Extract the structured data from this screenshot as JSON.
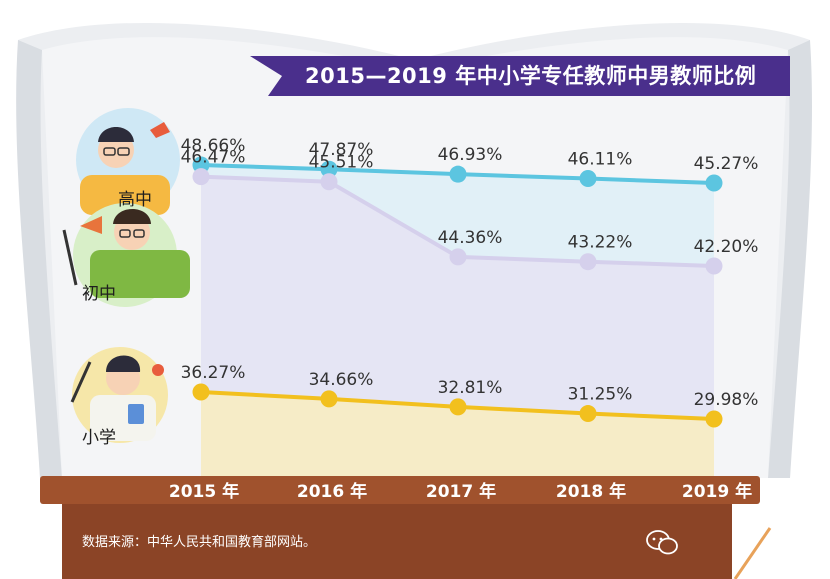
{
  "chart_data": {
    "type": "line",
    "title": "2015—2019 年中小学专任教师中男教师比例",
    "categories": [
      "2015 年",
      "2016 年",
      "2017 年",
      "2018 年",
      "2019 年"
    ],
    "series": [
      {
        "name": "高中",
        "values": [
          48.66,
          47.87,
          46.93,
          46.11,
          45.27
        ],
        "labels": [
          "48.66%",
          "47.87%",
          "46.93%",
          "46.11%",
          "45.27%"
        ],
        "color": "#5cc5e0"
      },
      {
        "name": "初中",
        "values": [
          46.47,
          45.51,
          44.36,
          43.22,
          42.2
        ],
        "labels": [
          "46.47%",
          "45.51%",
          "44.36%",
          "43.22%",
          "42.20%"
        ],
        "color": "#d5d0ec"
      },
      {
        "name": "小学",
        "values": [
          36.27,
          34.66,
          32.81,
          31.25,
          29.98
        ],
        "labels": [
          "36.27%",
          "34.66%",
          "32.81%",
          "31.25%",
          "29.98%"
        ],
        "color": "#f2c01e"
      }
    ],
    "grid": false,
    "legend": "left, as illustrated labels"
  },
  "source_note": "数据来源：中华人民共和国教育部网站。",
  "colors": {
    "title_bg": "#4a2f8c",
    "timeline_bar": "#a0522d",
    "footer_bg": "#8b4426",
    "book_page": "#e9ecef"
  },
  "icons": [
    "teacher-high-school-icon",
    "teacher-middle-school-icon",
    "teacher-primary-school-icon",
    "wechat-icon"
  ]
}
